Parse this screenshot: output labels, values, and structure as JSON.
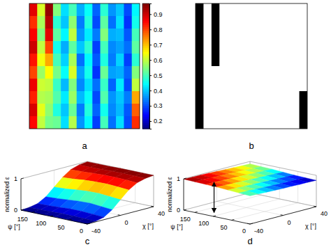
{
  "chart_data": [
    {
      "type": "heatmap",
      "title": "a",
      "color": "jet",
      "tick_labels": false,
      "color_range": [
        0.15,
        0.97
      ],
      "color_ticks": [
        0.2,
        0.3,
        0.4,
        0.5,
        0.6,
        0.7,
        0.8,
        0.9
      ],
      "cells": [
        [
          0.88,
          0.62,
          0.95,
          0.55,
          0.42,
          0.5,
          0.38,
          0.45,
          0.32,
          0.48,
          0.36,
          0.4,
          0.3,
          0.44
        ],
        [
          0.82,
          0.58,
          0.92,
          0.48,
          0.4,
          0.56,
          0.34,
          0.47,
          0.3,
          0.52,
          0.33,
          0.42,
          0.28,
          0.46
        ],
        [
          0.86,
          0.55,
          0.88,
          0.52,
          0.44,
          0.6,
          0.36,
          0.43,
          0.34,
          0.55,
          0.38,
          0.39,
          0.31,
          0.5
        ],
        [
          0.9,
          0.6,
          0.8,
          0.46,
          0.38,
          0.52,
          0.4,
          0.48,
          0.29,
          0.5,
          0.35,
          0.37,
          0.33,
          0.52
        ],
        [
          0.84,
          0.64,
          0.72,
          0.5,
          0.41,
          0.58,
          0.33,
          0.44,
          0.31,
          0.47,
          0.34,
          0.41,
          0.29,
          0.48
        ],
        [
          0.8,
          0.57,
          0.65,
          0.54,
          0.45,
          0.62,
          0.37,
          0.46,
          0.28,
          0.53,
          0.37,
          0.38,
          0.32,
          0.55
        ],
        [
          0.87,
          0.61,
          0.6,
          0.49,
          0.39,
          0.55,
          0.35,
          0.42,
          0.33,
          0.49,
          0.32,
          0.43,
          0.3,
          0.6
        ],
        [
          0.83,
          0.59,
          0.58,
          0.51,
          0.43,
          0.57,
          0.39,
          0.45,
          0.3,
          0.51,
          0.36,
          0.4,
          0.34,
          0.72
        ],
        [
          0.89,
          0.63,
          0.56,
          0.47,
          0.4,
          0.53,
          0.34,
          0.47,
          0.32,
          0.46,
          0.35,
          0.39,
          0.31,
          0.78
        ],
        [
          0.85,
          0.6,
          0.54,
          0.53,
          0.42,
          0.59,
          0.36,
          0.44,
          0.29,
          0.5,
          0.33,
          0.42,
          0.3,
          0.82
        ]
      ]
    },
    {
      "type": "heatmap",
      "title": "b",
      "color": "greys",
      "tick_labels": false,
      "color_range": [
        0,
        1
      ],
      "cells": [
        [
          1,
          0,
          1,
          0,
          0,
          0,
          0,
          0,
          0,
          0,
          0,
          0,
          0,
          0
        ],
        [
          1,
          0,
          1,
          0,
          0,
          0,
          0,
          0,
          0,
          0,
          0,
          0,
          0,
          0
        ],
        [
          1,
          0,
          1,
          0,
          0,
          0,
          0,
          0,
          0,
          0,
          0,
          0,
          0,
          0
        ],
        [
          1,
          0,
          1,
          0,
          0,
          0,
          0,
          0,
          0,
          0,
          0,
          0,
          0,
          0
        ],
        [
          1,
          0,
          1,
          0,
          0,
          0,
          0,
          0,
          0,
          0,
          0,
          0,
          0,
          0
        ],
        [
          1,
          0,
          0,
          0,
          0,
          0,
          0,
          0,
          0,
          0,
          0,
          0,
          0,
          0
        ],
        [
          1,
          0,
          0,
          0,
          0,
          0,
          0,
          0,
          0,
          0,
          0,
          0,
          0,
          0
        ],
        [
          1,
          0,
          0,
          0,
          0,
          0,
          0,
          0,
          0,
          0,
          0,
          0,
          0,
          1
        ],
        [
          1,
          0,
          0,
          0,
          0,
          0,
          0,
          0,
          0,
          0,
          0,
          0,
          0,
          1
        ],
        [
          1,
          0,
          0,
          0,
          0,
          0,
          0,
          0,
          0,
          0,
          0,
          0,
          0,
          1
        ]
      ]
    },
    {
      "type": "surface",
      "title": "c",
      "color": "jet",
      "grid": true,
      "xlabel": "ψ [°]",
      "ylabel": "χ [°]",
      "zlabel": "normalized ε",
      "xlim": [
        0,
        180
      ],
      "xticks": [
        0,
        50,
        100,
        150
      ],
      "ylim": [
        -40,
        40
      ],
      "yticks": [
        -40,
        0,
        40
      ],
      "zlim": [
        0,
        1
      ],
      "zticks": [
        0,
        1
      ],
      "color_range": [
        0,
        1
      ],
      "x": [
        0,
        30,
        60,
        90,
        120,
        150,
        180
      ],
      "y": [
        -40,
        -30,
        -20,
        -10,
        0,
        10,
        20,
        30,
        40
      ],
      "z": [
        [
          0.0,
          0.02,
          0.08,
          0.25,
          0.5,
          0.74,
          0.9,
          0.97,
          1.0
        ],
        [
          0.0,
          0.03,
          0.1,
          0.28,
          0.53,
          0.77,
          0.92,
          0.98,
          1.0
        ],
        [
          0.01,
          0.04,
          0.12,
          0.31,
          0.56,
          0.79,
          0.93,
          0.98,
          1.0
        ],
        [
          0.01,
          0.04,
          0.12,
          0.3,
          0.55,
          0.78,
          0.93,
          0.98,
          1.0
        ],
        [
          0.0,
          0.03,
          0.1,
          0.27,
          0.52,
          0.76,
          0.91,
          0.97,
          0.99
        ],
        [
          0.0,
          0.02,
          0.08,
          0.24,
          0.48,
          0.72,
          0.89,
          0.96,
          0.99
        ],
        [
          0.0,
          0.02,
          0.07,
          0.22,
          0.46,
          0.7,
          0.88,
          0.96,
          0.99
        ]
      ]
    },
    {
      "type": "surface",
      "title": "d",
      "color": "jet",
      "grid": true,
      "xlabel": "ψ [°]",
      "ylabel": "χ [°]",
      "zlabel": "normalized ε",
      "xlim": [
        0,
        180
      ],
      "xticks": [
        0,
        50,
        100,
        150
      ],
      "ylim": [
        -40,
        40
      ],
      "yticks": [
        -40,
        0,
        40
      ],
      "zlim": [
        0,
        1
      ],
      "zticks": [
        0,
        1
      ],
      "color_range": [
        0.84,
        0.99
      ],
      "x": [
        0,
        30,
        60,
        90,
        120,
        150,
        180
      ],
      "y": [
        -40,
        -30,
        -20,
        -10,
        0,
        10,
        20,
        30,
        40
      ],
      "z": [
        [
          0.9,
          0.89,
          0.88,
          0.87,
          0.86,
          0.86,
          0.85,
          0.85,
          0.84
        ],
        [
          0.92,
          0.91,
          0.9,
          0.89,
          0.88,
          0.87,
          0.86,
          0.86,
          0.85
        ],
        [
          0.94,
          0.93,
          0.92,
          0.91,
          0.9,
          0.89,
          0.88,
          0.87,
          0.86
        ],
        [
          0.96,
          0.95,
          0.94,
          0.93,
          0.92,
          0.91,
          0.9,
          0.89,
          0.88
        ],
        [
          0.97,
          0.97,
          0.96,
          0.95,
          0.94,
          0.93,
          0.92,
          0.91,
          0.9
        ],
        [
          0.98,
          0.98,
          0.97,
          0.96,
          0.95,
          0.94,
          0.93,
          0.92,
          0.91
        ],
        [
          0.99,
          0.98,
          0.98,
          0.97,
          0.96,
          0.95,
          0.94,
          0.93,
          0.92
        ]
      ]
    }
  ]
}
